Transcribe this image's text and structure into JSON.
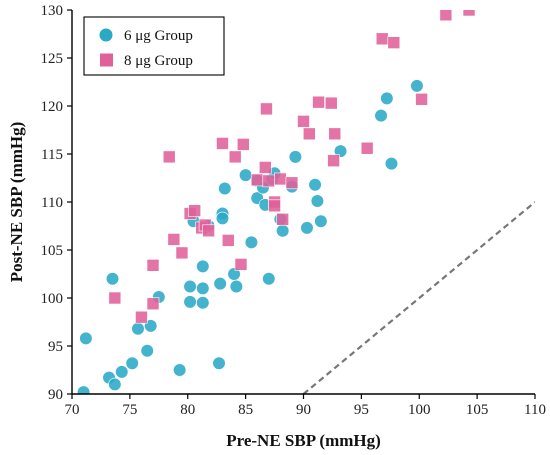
{
  "chart_data": {
    "type": "scatter",
    "title": "",
    "xlabel": "Pre-NE SBP (mmHg)",
    "ylabel": "Post-NE SBP (mmHg)",
    "xlim": [
      70,
      110
    ],
    "ylim": [
      90,
      130
    ],
    "xticks": [
      70,
      75,
      80,
      85,
      90,
      95,
      100,
      105,
      110
    ],
    "yticks": [
      90,
      95,
      100,
      105,
      110,
      115,
      120,
      125,
      130
    ],
    "grid": false,
    "legend_position": "top-left",
    "reference_line": {
      "style": "dashed",
      "color": "#777777",
      "points": [
        [
          90,
          90
        ],
        [
          110,
          110
        ]
      ]
    },
    "series": [
      {
        "name": "6 μg Group",
        "marker": "circle",
        "color": "#2aa9c7",
        "points": [
          [
            71.0,
            90.2
          ],
          [
            71.2,
            95.8
          ],
          [
            73.2,
            91.7
          ],
          [
            73.5,
            102.0
          ],
          [
            73.7,
            91.0
          ],
          [
            74.3,
            92.3
          ],
          [
            75.2,
            93.2
          ],
          [
            75.7,
            96.8
          ],
          [
            76.5,
            94.5
          ],
          [
            76.8,
            97.1
          ],
          [
            77.5,
            100.1
          ],
          [
            79.3,
            92.5
          ],
          [
            80.2,
            99.6
          ],
          [
            80.2,
            101.2
          ],
          [
            80.5,
            108.0
          ],
          [
            81.3,
            103.3
          ],
          [
            81.3,
            101.0
          ],
          [
            81.3,
            99.5
          ],
          [
            81.8,
            107.5
          ],
          [
            82.7,
            93.2
          ],
          [
            82.8,
            101.5
          ],
          [
            83.0,
            108.8
          ],
          [
            83.0,
            108.3
          ],
          [
            83.2,
            111.4
          ],
          [
            84.0,
            102.5
          ],
          [
            84.2,
            101.2
          ],
          [
            85.0,
            112.8
          ],
          [
            85.5,
            105.8
          ],
          [
            86.0,
            112.2
          ],
          [
            86.0,
            110.4
          ],
          [
            86.5,
            111.5
          ],
          [
            86.7,
            109.7
          ],
          [
            87.0,
            102.0
          ],
          [
            87.3,
            112.4
          ],
          [
            87.5,
            113.0
          ],
          [
            88.0,
            108.2
          ],
          [
            88.2,
            107.0
          ],
          [
            89.0,
            111.6
          ],
          [
            89.3,
            114.7
          ],
          [
            90.3,
            107.3
          ],
          [
            91.0,
            111.8
          ],
          [
            91.2,
            110.1
          ],
          [
            91.5,
            108.0
          ],
          [
            93.2,
            115.3
          ],
          [
            96.7,
            119.0
          ],
          [
            97.2,
            120.8
          ],
          [
            97.6,
            114.0
          ],
          [
            99.8,
            122.1
          ]
        ]
      },
      {
        "name": "8 μg Group",
        "marker": "square",
        "color": "#e0609a",
        "points": [
          [
            73.7,
            100.0
          ],
          [
            76.0,
            98.0
          ],
          [
            77.0,
            103.4
          ],
          [
            77.0,
            99.4
          ],
          [
            78.4,
            114.7
          ],
          [
            78.8,
            106.1
          ],
          [
            79.5,
            104.7
          ],
          [
            80.2,
            108.8
          ],
          [
            80.6,
            109.1
          ],
          [
            81.2,
            107.3
          ],
          [
            81.5,
            107.6
          ],
          [
            81.8,
            107.0
          ],
          [
            83.0,
            116.1
          ],
          [
            83.5,
            106.0
          ],
          [
            84.1,
            114.7
          ],
          [
            84.6,
            103.5
          ],
          [
            84.8,
            116.0
          ],
          [
            86.0,
            112.3
          ],
          [
            86.7,
            113.6
          ],
          [
            86.8,
            119.7
          ],
          [
            87.0,
            112.2
          ],
          [
            87.5,
            110.0
          ],
          [
            87.5,
            109.6
          ],
          [
            88.0,
            112.4
          ],
          [
            88.2,
            108.2
          ],
          [
            89.0,
            112.0
          ],
          [
            90.0,
            118.4
          ],
          [
            90.5,
            117.1
          ],
          [
            91.3,
            120.4
          ],
          [
            92.4,
            120.3
          ],
          [
            92.6,
            114.3
          ],
          [
            92.7,
            117.1
          ],
          [
            95.5,
            115.6
          ],
          [
            96.8,
            127.0
          ],
          [
            97.8,
            126.6
          ],
          [
            100.2,
            120.7
          ],
          [
            102.3,
            129.5
          ],
          [
            104.3,
            130.0
          ]
        ]
      }
    ]
  }
}
